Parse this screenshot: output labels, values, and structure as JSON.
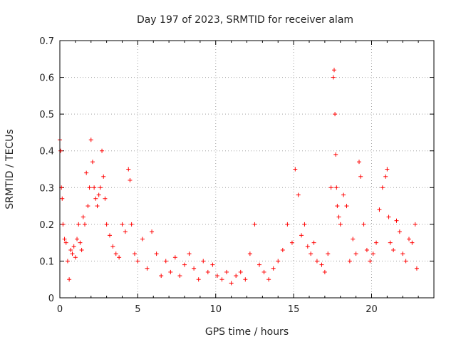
{
  "chart_data": {
    "type": "scatter",
    "title": "Day 197 of 2023, SRMTID for receiver alam",
    "xlabel": "GPS time / hours",
    "ylabel": "SRMTID / TECUs",
    "xlim": [
      0,
      24
    ],
    "ylim": [
      0,
      0.7
    ],
    "xticks": [
      0,
      5,
      10,
      15,
      20
    ],
    "xtick_labels": [
      "0",
      "5",
      "10",
      "15",
      "20"
    ],
    "yticks": [
      0,
      0.1,
      0.2,
      0.3,
      0.4,
      0.5,
      0.6,
      0.7
    ],
    "ytick_labels": [
      "0",
      "0.1",
      "0.2",
      "0.3",
      "0.4",
      "0.5",
      "0.6",
      "0.7"
    ],
    "grid": true,
    "marker": "+",
    "series": [
      {
        "name": "SRMTID",
        "color": "#ff0000",
        "x": [
          0.0,
          0.05,
          0.1,
          0.15,
          0.2,
          0.3,
          0.4,
          0.5,
          0.6,
          0.7,
          0.8,
          0.9,
          1.0,
          1.1,
          1.2,
          1.3,
          1.4,
          1.5,
          1.6,
          1.7,
          1.8,
          1.9,
          2.0,
          2.1,
          2.2,
          2.3,
          2.4,
          2.5,
          2.6,
          2.7,
          2.8,
          2.9,
          3.0,
          3.2,
          3.4,
          3.6,
          3.8,
          4.0,
          4.2,
          4.4,
          4.5,
          4.6,
          4.8,
          5.0,
          5.3,
          5.6,
          5.9,
          6.2,
          6.5,
          6.8,
          7.1,
          7.4,
          7.7,
          8.0,
          8.3,
          8.6,
          8.9,
          9.2,
          9.5,
          9.8,
          10.1,
          10.4,
          10.7,
          11.0,
          11.3,
          11.6,
          11.9,
          12.2,
          12.5,
          12.8,
          13.1,
          13.4,
          13.7,
          14.0,
          14.3,
          14.6,
          14.9,
          15.1,
          15.3,
          15.5,
          15.7,
          15.9,
          16.1,
          16.3,
          16.5,
          16.8,
          17.0,
          17.2,
          17.4,
          17.55,
          17.6,
          17.65,
          17.7,
          17.75,
          17.8,
          17.9,
          18.0,
          18.2,
          18.4,
          18.6,
          18.8,
          19.0,
          19.2,
          19.3,
          19.5,
          19.7,
          19.9,
          20.1,
          20.3,
          20.5,
          20.7,
          20.9,
          21.0,
          21.1,
          21.2,
          21.4,
          21.6,
          21.8,
          22.0,
          22.2,
          22.4,
          22.6,
          22.8,
          22.9
        ],
        "y": [
          0.43,
          0.4,
          0.3,
          0.27,
          0.2,
          0.16,
          0.15,
          0.1,
          0.05,
          0.13,
          0.12,
          0.14,
          0.11,
          0.16,
          0.2,
          0.15,
          0.13,
          0.22,
          0.2,
          0.34,
          0.25,
          0.3,
          0.43,
          0.37,
          0.3,
          0.27,
          0.25,
          0.28,
          0.3,
          0.4,
          0.33,
          0.27,
          0.2,
          0.17,
          0.14,
          0.12,
          0.11,
          0.2,
          0.18,
          0.35,
          0.32,
          0.2,
          0.12,
          0.1,
          0.16,
          0.08,
          0.18,
          0.12,
          0.06,
          0.1,
          0.07,
          0.11,
          0.06,
          0.09,
          0.12,
          0.08,
          0.05,
          0.1,
          0.07,
          0.09,
          0.06,
          0.05,
          0.07,
          0.04,
          0.06,
          0.07,
          0.05,
          0.12,
          0.2,
          0.09,
          0.07,
          0.05,
          0.08,
          0.1,
          0.13,
          0.2,
          0.15,
          0.35,
          0.28,
          0.17,
          0.2,
          0.14,
          0.12,
          0.15,
          0.1,
          0.09,
          0.07,
          0.12,
          0.3,
          0.6,
          0.62,
          0.5,
          0.39,
          0.3,
          0.25,
          0.22,
          0.2,
          0.28,
          0.25,
          0.1,
          0.16,
          0.12,
          0.37,
          0.33,
          0.2,
          0.13,
          0.1,
          0.12,
          0.15,
          0.24,
          0.3,
          0.33,
          0.35,
          0.22,
          0.15,
          0.13,
          0.21,
          0.18,
          0.12,
          0.1,
          0.16,
          0.15,
          0.2,
          0.08
        ]
      }
    ]
  }
}
